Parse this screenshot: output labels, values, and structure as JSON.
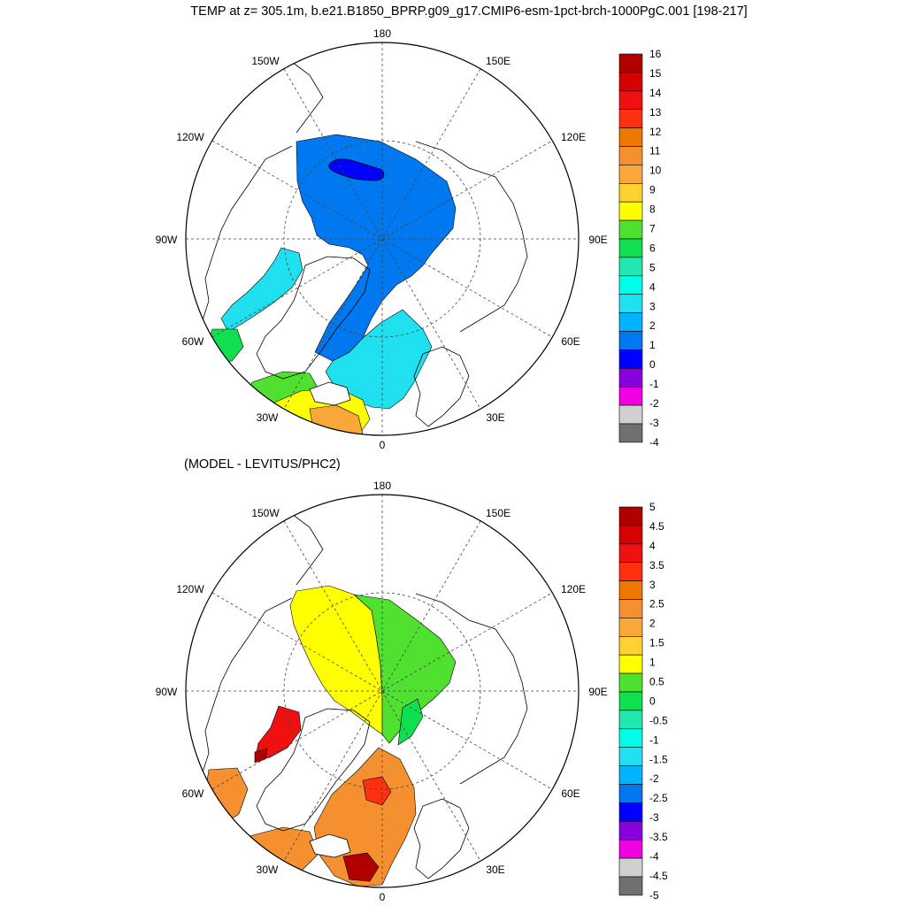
{
  "title": "TEMP at z= 305.1m, b.e21.B1850_BPRP.g09_g17.CMIP6-esm-1pct-brch-1000PgC.001 [198-217]",
  "lon_labels": {
    "l180": "180",
    "l150w": "150W",
    "l150e": "150E",
    "l120w": "120W",
    "l120e": "120E",
    "l90w": "90W",
    "l90e": "90E",
    "l60w": "60W",
    "l60e": "60E",
    "l30w": "30W",
    "l30e": "30E",
    "l0": "0"
  },
  "panel2_title": "(MODEL - LEVITUS/PHC2)",
  "colorbar1": {
    "labels": [
      "16",
      "15",
      "14",
      "13",
      "12",
      "11",
      "10",
      "9",
      "8",
      "7",
      "6",
      "5",
      "4",
      "3",
      "2",
      "1",
      "0",
      "-1",
      "-2",
      "-3",
      "-4"
    ],
    "colors": [
      "#b00000",
      "#d80000",
      "#f01010",
      "#ff3010",
      "#f07800",
      "#f49030",
      "#f8a838",
      "#ffd030",
      "#ffff00",
      "#50e030",
      "#10e050",
      "#20e8b0",
      "#00ffe8",
      "#20e0f0",
      "#00b4ff",
      "#0078f0",
      "#0000ff",
      "#8800e0",
      "#f000e0",
      "#d0d0d0",
      "#707070"
    ]
  },
  "colorbar2": {
    "labels": [
      "5",
      "4.5",
      "4",
      "3.5",
      "3",
      "2.5",
      "2",
      "1.5",
      "1",
      "0.5",
      "0",
      "-0.5",
      "-1",
      "-1.5",
      "-2",
      "-2.5",
      "-3",
      "-3.5",
      "-4",
      "-4.5",
      "-5"
    ],
    "colors": [
      "#b00000",
      "#d80000",
      "#f01010",
      "#ff3010",
      "#f07800",
      "#f49030",
      "#f8a838",
      "#ffd030",
      "#ffff00",
      "#50e030",
      "#10e050",
      "#20e8b0",
      "#00ffe8",
      "#20e0f0",
      "#00b4ff",
      "#0078f0",
      "#0000ff",
      "#8800e0",
      "#f000e0",
      "#d0d0d0",
      "#707070"
    ]
  }
}
